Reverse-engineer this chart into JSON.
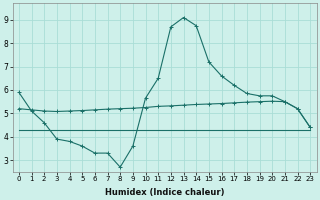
{
  "xlabel": "Humidex (Indice chaleur)",
  "ylabel": "",
  "background_color": "#cef0ea",
  "grid_color": "#aaddd6",
  "line_color": "#1a7068",
  "xlim": [
    -0.5,
    23.5
  ],
  "ylim": [
    2.5,
    9.7
  ],
  "xticks": [
    0,
    1,
    2,
    3,
    4,
    5,
    6,
    7,
    8,
    9,
    10,
    11,
    12,
    13,
    14,
    15,
    16,
    17,
    18,
    19,
    20,
    21,
    22,
    23
  ],
  "yticks": [
    3,
    4,
    5,
    6,
    7,
    8,
    9
  ],
  "line1_x": [
    0,
    1,
    2,
    3,
    4,
    5,
    6,
    7,
    8,
    9,
    10,
    11,
    12,
    13,
    14,
    15,
    16,
    17,
    18,
    19,
    20,
    21,
    22,
    23
  ],
  "line1_y": [
    5.9,
    5.1,
    4.6,
    3.9,
    3.8,
    3.6,
    3.3,
    3.3,
    2.7,
    3.6,
    5.65,
    6.5,
    8.7,
    9.1,
    8.75,
    7.2,
    6.6,
    6.2,
    5.85,
    5.75,
    5.75,
    5.5,
    5.2,
    4.4
  ],
  "line2_x": [
    0,
    1,
    2,
    3,
    4,
    5,
    6,
    7,
    8,
    9,
    10,
    11,
    12,
    13,
    14,
    15,
    16,
    17,
    18,
    19,
    20,
    21,
    22,
    23
  ],
  "line2_y": [
    5.2,
    5.15,
    5.1,
    5.08,
    5.1,
    5.12,
    5.15,
    5.18,
    5.2,
    5.22,
    5.25,
    5.3,
    5.32,
    5.35,
    5.38,
    5.4,
    5.42,
    5.45,
    5.48,
    5.5,
    5.52,
    5.5,
    5.2,
    4.4
  ],
  "line3_x": [
    0,
    1,
    2,
    3,
    4,
    5,
    6,
    7,
    8,
    9,
    10,
    11,
    12,
    13,
    14,
    15,
    16,
    17,
    18,
    19,
    20,
    21,
    22,
    23
  ],
  "line3_y": [
    4.3,
    4.3,
    4.3,
    4.3,
    4.3,
    4.3,
    4.3,
    4.3,
    4.3,
    4.3,
    4.3,
    4.3,
    4.3,
    4.3,
    4.3,
    4.3,
    4.3,
    4.3,
    4.3,
    4.3,
    4.3,
    4.3,
    4.3,
    4.3
  ],
  "marker_size": 3.5,
  "line_width": 0.8,
  "tick_fontsize": 5.0,
  "xlabel_fontsize": 6.0
}
